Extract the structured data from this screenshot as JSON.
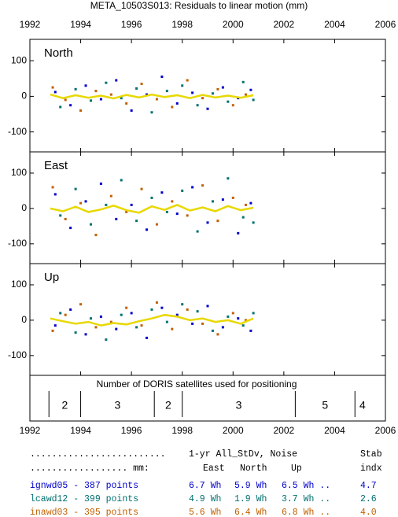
{
  "title": "META_10503S013: Residuals to linear motion (mm)",
  "chart_data": [
    {
      "type": "scatter",
      "label": "North",
      "xlim": [
        1992,
        2006
      ],
      "xticks": [
        1992,
        1994,
        1996,
        1998,
        2000,
        2002,
        2004,
        2006
      ],
      "ylim": [
        -156,
        160
      ],
      "yticks": [
        -100,
        0,
        100
      ],
      "series": [
        {
          "name": "ignwd05",
          "color": "#0000cc",
          "x": [
            1993.0,
            1993.6,
            1994.2,
            1994.8,
            1995.4,
            1996.0,
            1996.6,
            1997.2,
            1997.8,
            1998.4,
            1999.0,
            1999.6,
            2000.2,
            2000.7
          ],
          "values": [
            12,
            -25,
            30,
            -8,
            45,
            -40,
            5,
            55,
            -20,
            10,
            -35,
            25,
            -5,
            18
          ]
        },
        {
          "name": "lcawd12",
          "color": "#007070",
          "x": [
            1993.2,
            1993.8,
            1994.4,
            1995.0,
            1995.6,
            1996.2,
            1996.8,
            1997.4,
            1998.0,
            1998.6,
            1999.2,
            1999.8,
            2000.4,
            2000.8
          ],
          "values": [
            -30,
            20,
            -12,
            38,
            -5,
            22,
            -45,
            15,
            30,
            -25,
            8,
            -15,
            40,
            -10
          ]
        },
        {
          "name": "inawd03",
          "color": "#c06000",
          "x": [
            1992.9,
            1993.4,
            1994.0,
            1994.6,
            1995.2,
            1995.8,
            1996.4,
            1997.0,
            1997.6,
            1998.2,
            1998.8,
            1999.4,
            2000.0,
            2000.5
          ],
          "values": [
            25,
            -10,
            -40,
            15,
            5,
            -20,
            35,
            -8,
            -30,
            45,
            -5,
            20,
            -25,
            5
          ]
        }
      ],
      "trend": {
        "color": "#e8d800",
        "x": [
          1992.8,
          1993.3,
          1993.8,
          1994.3,
          1994.8,
          1995.3,
          1995.8,
          1996.3,
          1996.8,
          1997.3,
          1997.8,
          1998.3,
          1998.8,
          1999.3,
          1999.8,
          2000.3,
          2000.8
        ],
        "values": [
          5,
          -5,
          3,
          -4,
          2,
          -6,
          4,
          -3,
          5,
          -2,
          3,
          -5,
          4,
          -3,
          2,
          -4,
          3
        ]
      }
    },
    {
      "type": "scatter",
      "label": "East",
      "xlim": [
        1992,
        2006
      ],
      "xticks": [
        1992,
        1994,
        1996,
        1998,
        2000,
        2002,
        2004,
        2006
      ],
      "ylim": [
        -156,
        160
      ],
      "yticks": [
        -100,
        0,
        100
      ],
      "series": [
        {
          "name": "ignwd05",
          "color": "#0000cc",
          "x": [
            1993.0,
            1993.6,
            1994.2,
            1994.8,
            1995.4,
            1996.0,
            1996.6,
            1997.2,
            1997.8,
            1998.4,
            1999.0,
            1999.6,
            2000.2,
            2000.7
          ],
          "values": [
            40,
            -55,
            20,
            70,
            -30,
            10,
            -60,
            45,
            -15,
            60,
            -40,
            25,
            -70,
            15
          ]
        },
        {
          "name": "lcawd12",
          "color": "#007070",
          "x": [
            1993.2,
            1993.8,
            1994.4,
            1995.0,
            1995.6,
            1996.2,
            1996.8,
            1997.4,
            1998.0,
            1998.6,
            1999.2,
            1999.8,
            2000.4,
            2000.8
          ],
          "values": [
            -20,
            55,
            -45,
            10,
            80,
            -35,
            30,
            -10,
            50,
            -65,
            20,
            85,
            -25,
            -40
          ]
        },
        {
          "name": "inawd03",
          "color": "#c06000",
          "x": [
            1992.9,
            1993.4,
            1994.0,
            1994.6,
            1995.2,
            1995.8,
            1996.4,
            1997.0,
            1997.6,
            1998.2,
            1998.8,
            1999.4,
            2000.0,
            2000.5
          ],
          "values": [
            60,
            -30,
            15,
            -75,
            35,
            -10,
            55,
            -45,
            20,
            -20,
            65,
            -35,
            30,
            10
          ]
        }
      ],
      "trend": {
        "color": "#e8d800",
        "x": [
          1992.8,
          1993.3,
          1993.8,
          1994.3,
          1994.8,
          1995.3,
          1995.8,
          1996.3,
          1996.8,
          1997.3,
          1997.8,
          1998.3,
          1998.8,
          1999.3,
          1999.8,
          2000.3,
          2000.8
        ],
        "values": [
          0,
          -8,
          5,
          -10,
          -3,
          8,
          -5,
          -12,
          6,
          -4,
          10,
          -6,
          3,
          -8,
          7,
          -5,
          2
        ]
      }
    },
    {
      "type": "scatter",
      "label": "Up",
      "xlim": [
        1992,
        2006
      ],
      "xticks": [
        1992,
        1994,
        1996,
        1998,
        2000,
        2002,
        2004,
        2006
      ],
      "ylim": [
        -156,
        160
      ],
      "yticks": [
        -100,
        0,
        100
      ],
      "series": [
        {
          "name": "ignwd05",
          "color": "#0000cc",
          "x": [
            1993.0,
            1993.6,
            1994.2,
            1994.8,
            1995.4,
            1996.0,
            1996.6,
            1997.2,
            1997.8,
            1998.4,
            1999.0,
            1999.6,
            2000.2,
            2000.7
          ],
          "values": [
            -15,
            30,
            -40,
            10,
            -25,
            20,
            -50,
            35,
            15,
            -10,
            40,
            -20,
            5,
            -30
          ]
        },
        {
          "name": "lcawd12",
          "color": "#007070",
          "x": [
            1993.2,
            1993.8,
            1994.4,
            1995.0,
            1995.6,
            1996.2,
            1996.8,
            1997.4,
            1998.0,
            1998.6,
            1999.2,
            1999.8,
            2000.4,
            2000.8
          ],
          "values": [
            20,
            -35,
            5,
            -55,
            15,
            -20,
            30,
            -5,
            45,
            25,
            -30,
            10,
            -15,
            20
          ]
        },
        {
          "name": "inawd03",
          "color": "#c06000",
          "x": [
            1992.9,
            1993.4,
            1994.0,
            1994.6,
            1995.2,
            1995.8,
            1996.4,
            1997.0,
            1997.6,
            1998.2,
            1998.8,
            1999.4,
            2000.0,
            2000.5
          ],
          "values": [
            -30,
            15,
            45,
            -20,
            -5,
            35,
            -15,
            50,
            -25,
            30,
            -10,
            -40,
            20,
            0
          ]
        }
      ],
      "trend": {
        "color": "#e8d800",
        "x": [
          1992.8,
          1993.3,
          1993.8,
          1994.3,
          1994.8,
          1995.3,
          1995.8,
          1996.3,
          1996.8,
          1997.3,
          1997.8,
          1998.3,
          1998.8,
          1999.3,
          1999.8,
          2000.3,
          2000.8
        ],
        "values": [
          5,
          -3,
          -10,
          -5,
          -15,
          -8,
          -12,
          -3,
          5,
          15,
          10,
          0,
          5,
          -5,
          0,
          -10,
          5
        ]
      }
    }
  ],
  "satellites": {
    "title": "Number of DORIS satellites used for positioning",
    "segments": [
      {
        "count": 2,
        "start": 1992.75,
        "end": 1994
      },
      {
        "count": 3,
        "start": 1994,
        "end": 1996.9
      },
      {
        "count": 2,
        "start": 1996.9,
        "end": 1998
      },
      {
        "count": 3,
        "start": 1998,
        "end": 2002.45
      },
      {
        "count": 5,
        "start": 2002.45,
        "end": 2004.8
      },
      {
        "count": 4,
        "start": 2004.8,
        "end": 2005.4
      }
    ]
  },
  "table": {
    "header": [
      [
        ".........................",
        "1-yr All_StDv, Noise",
        "Stab"
      ],
      [
        ".................. mm:",
        "East",
        "North",
        "Up",
        "indx"
      ]
    ],
    "rows": [
      {
        "label": "ignwd05 - 387 points",
        "cells": [
          "6.7 Wh",
          "5.9 Wh",
          "6.5 Wh ..",
          "4.7"
        ]
      },
      {
        "label": "lcawd12 - 399 points",
        "cells": [
          "4.9 Wh",
          "1.9 Wh",
          "3.7 Wh ..",
          "2.6"
        ]
      },
      {
        "label": "inawd03 - 395 points",
        "cells": [
          "5.6 Wh",
          "6.4 Wh",
          "6.8 Wh ..",
          "4.0"
        ]
      }
    ]
  }
}
